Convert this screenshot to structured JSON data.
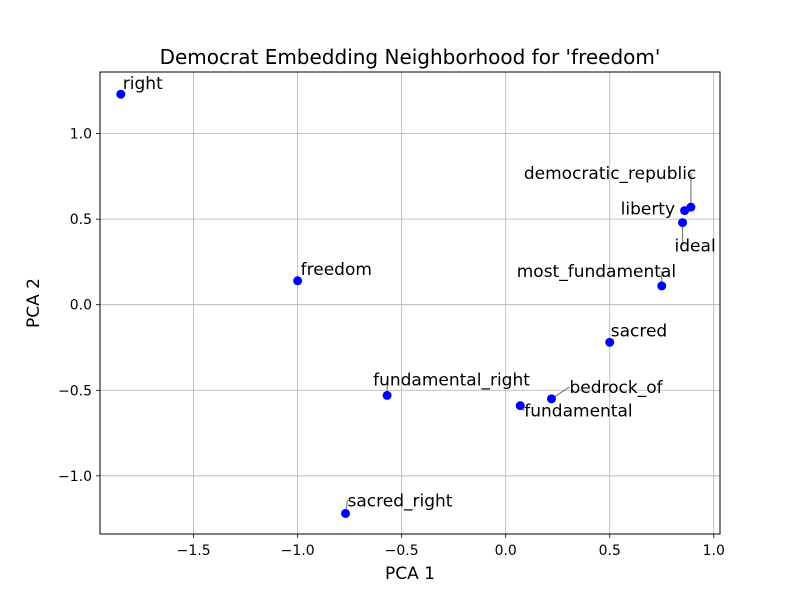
{
  "chart_data": {
    "type": "scatter",
    "title": "Democrat Embedding Neighborhood for 'freedom'",
    "xlabel": "PCA 1",
    "ylabel": "PCA 2",
    "xlim": [
      -1.95,
      1.03
    ],
    "ylim": [
      -1.34,
      1.36
    ],
    "xticks": [
      {
        "value": -1.5,
        "label": "−1.5"
      },
      {
        "value": -1.0,
        "label": "−1.0"
      },
      {
        "value": -0.5,
        "label": "−0.5"
      },
      {
        "value": 0.0,
        "label": "0.0"
      },
      {
        "value": 0.5,
        "label": "0.5"
      },
      {
        "value": 1.0,
        "label": "1.0"
      }
    ],
    "yticks": [
      {
        "value": -1.0,
        "label": "−1.0"
      },
      {
        "value": -0.5,
        "label": "−0.5"
      },
      {
        "value": 0.0,
        "label": "0.0"
      },
      {
        "value": 0.5,
        "label": "0.5"
      },
      {
        "value": 1.0,
        "label": "1.0"
      }
    ],
    "grid": true,
    "point_color": "#0000ff",
    "leader_color": "#808080",
    "points": [
      {
        "label": "right",
        "x": -1.85,
        "y": 1.23
      },
      {
        "label": "freedom",
        "x": -1.0,
        "y": 0.14
      },
      {
        "label": "democratic_republic",
        "x": 0.89,
        "y": 0.57
      },
      {
        "label": "liberty",
        "x": 0.86,
        "y": 0.55
      },
      {
        "label": "ideal",
        "x": 0.85,
        "y": 0.48
      },
      {
        "label": "most_fundamental",
        "x": 0.75,
        "y": 0.11
      },
      {
        "label": "sacred",
        "x": 0.5,
        "y": -0.22
      },
      {
        "label": "fundamental_right",
        "x": -0.57,
        "y": -0.53
      },
      {
        "label": "bedrock_of",
        "x": 0.22,
        "y": -0.55
      },
      {
        "label": "fundamental",
        "x": 0.07,
        "y": -0.59
      },
      {
        "label": "sacred_right",
        "x": -0.77,
        "y": -1.22
      }
    ]
  }
}
